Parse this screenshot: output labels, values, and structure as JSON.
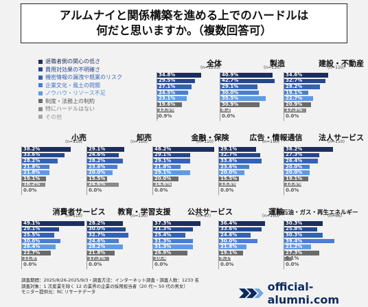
{
  "title": {
    "line1": "アルムナイと関係構築を進める上でのハードルは",
    "line2": "何だと思いますか。（複数回答可）"
  },
  "colors": [
    "#1b2e5c",
    "#25478c",
    "#3462b5",
    "#4a7fd0",
    "#5f9be5",
    "#6b6b6b",
    "#8a8a8a",
    "#aaaaaa"
  ],
  "legend": [
    "退職者側の関心の低さ",
    "費用対効果の不明確さ",
    "機密情報の漏洩や競業のリスク",
    "企業文化・風土の問題",
    "ノウハウ・リソース不足",
    "制度・法務上の制約",
    "特にハードルはない",
    "その他"
  ],
  "chart_data": [
    {
      "type": "bar",
      "title": "全体",
      "n": "(n=1233)",
      "values": [
        34.8,
        29.5,
        27.1,
        24.5,
        23.1,
        19.6,
        13.5,
        0.9
      ]
    },
    {
      "type": "bar",
      "title": "製造",
      "n": "(n=110)",
      "values": [
        40.9,
        42.7,
        29.1,
        30.0,
        35.5,
        30.9,
        8.2,
        0.0
      ]
    },
    {
      "type": "bar",
      "title": "建設・不動産",
      "n": "(n=110)",
      "values": [
        34.6,
        32.7,
        28.2,
        19.1,
        22.7,
        20.9,
        17.3,
        0.0
      ]
    },
    {
      "type": "bar",
      "title": "小売",
      "n": "(n=110)",
      "values": [
        38.2,
        33.6,
        28.2,
        21.8,
        21.8,
        19.1,
        18.2,
        0.0
      ]
    },
    {
      "type": "bar",
      "title": "卸売",
      "n": "(n=110)",
      "values": [
        29.1,
        24.6,
        28.2,
        23.6,
        20.0,
        15.5,
        24.6,
        0.0
      ]
    },
    {
      "type": "bar",
      "title": "金融・保険",
      "n": "(n=110)",
      "values": [
        48.2,
        29.1,
        29.1,
        21.8,
        29.1,
        20.0,
        14.6,
        0.0
      ]
    },
    {
      "type": "bar",
      "title": "広告・情報通信",
      "n": "(n=110)",
      "values": [
        29.1,
        32.7,
        33.6,
        23.6,
        20.0,
        15.5,
        13.6,
        0.0
      ]
    },
    {
      "type": "bar",
      "title": "法人サービス",
      "n": "(n=110)",
      "values": [
        38.2,
        27.3,
        26.4,
        20.0,
        20.0,
        19.1,
        13.6,
        0.0
      ]
    },
    {
      "type": "bar",
      "title": "消費者サービス",
      "n": "(n=110)",
      "values": [
        49.1,
        29.1,
        25.5,
        30.0,
        26.4,
        22.7,
        11.8,
        0.0
      ]
    },
    {
      "type": "bar",
      "title": "教育・学習支援",
      "n": "(n=110)",
      "values": [
        28.2,
        30.0,
        32.7,
        24.6,
        28.2,
        21.8,
        17.3,
        0.0
      ]
    },
    {
      "type": "bar",
      "title": "公共サービス",
      "n": "(n=67)",
      "values": [
        37.3,
        31.3,
        25.4,
        31.3,
        31.3,
        26.9,
        10.4,
        0.0
      ]
    },
    {
      "type": "bar",
      "title": "運輸",
      "n": "(n=110)",
      "values": [
        36.4,
        33.6,
        24.6,
        30.0,
        21.8,
        19.1,
        9.1,
        0.0
      ]
    },
    {
      "type": "bar",
      "title": "石油・ガス・再生エネルギー",
      "n": "(n=66)",
      "values": [
        30.3,
        25.8,
        30.3,
        39.4,
        21.2,
        27.3,
        6.1,
        0.0
      ]
    }
  ],
  "footer": {
    "line1": "調査期間：2025/8/26-2025/9/3・調査方法：インターネット調査・調査人数：1233 名",
    "line2": "調査対象：1 次産業を除く 12 の業界の企業の採用担当者（20 代～ 50 代の男女）",
    "line3": "モニター提供元：RC リサーチデータ"
  },
  "brand": {
    "text": "official-alumni.com",
    "logo": "double-chevron-logo"
  }
}
